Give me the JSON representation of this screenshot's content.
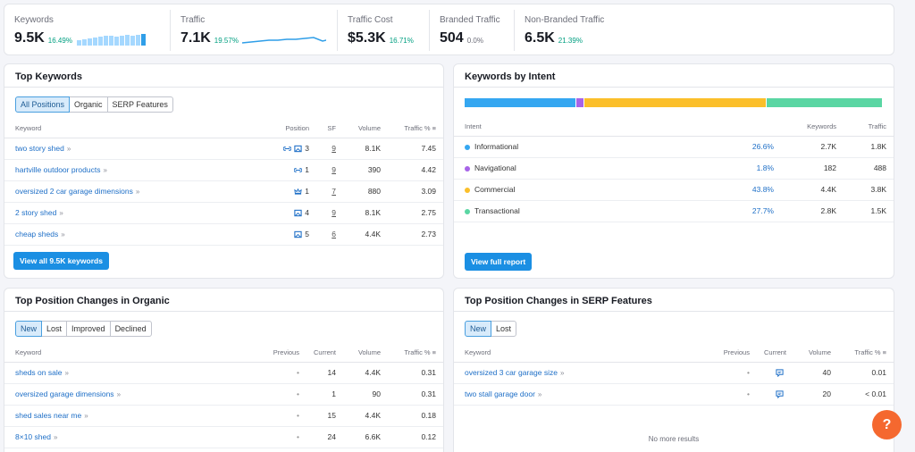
{
  "metrics": {
    "keywords": {
      "label": "Keywords",
      "value": "9.5K",
      "change": "16.49%"
    },
    "traffic": {
      "label": "Traffic",
      "value": "7.1K",
      "change": "19.57%"
    },
    "traffic_cost": {
      "label": "Traffic Cost",
      "value": "$5.3K",
      "change": "16.71%"
    },
    "branded": {
      "label": "Branded Traffic",
      "value": "504",
      "change": "0.0%"
    },
    "nonbranded": {
      "label": "Non-Branded Traffic",
      "value": "6.5K",
      "change": "21.39%"
    }
  },
  "top_keywords": {
    "title": "Top Keywords",
    "tabs": [
      "All Positions",
      "Organic",
      "SERP Features"
    ],
    "headers": {
      "keyword": "Keyword",
      "position": "Position",
      "sf": "SF",
      "volume": "Volume",
      "traffic": "Traffic %"
    },
    "rows": [
      {
        "keyword": "two story shed",
        "position": "3",
        "sf": "9",
        "volume": "8.1K",
        "traffic": "7.45",
        "icons": [
          "link-icon",
          "image-icon"
        ]
      },
      {
        "keyword": "hartville outdoor products",
        "position": "1",
        "sf": "9",
        "volume": "390",
        "traffic": "4.42",
        "icons": [
          "link-icon"
        ]
      },
      {
        "keyword": "oversized 2 car garage dimensions",
        "position": "1",
        "sf": "7",
        "volume": "880",
        "traffic": "3.09",
        "icons": [
          "crown-icon"
        ]
      },
      {
        "keyword": "2 story shed",
        "position": "4",
        "sf": "9",
        "volume": "8.1K",
        "traffic": "2.75",
        "icons": [
          "image-icon"
        ]
      },
      {
        "keyword": "cheap sheds",
        "position": "5",
        "sf": "6",
        "volume": "4.4K",
        "traffic": "2.73",
        "icons": [
          "image-icon"
        ]
      }
    ],
    "button": "View all 9.5K keywords"
  },
  "intent": {
    "title": "Keywords by Intent",
    "headers": {
      "intent": "Intent",
      "keywords": "Keywords",
      "traffic": "Traffic"
    },
    "rows": [
      {
        "name": "Informational",
        "pct": "26.6%",
        "keywords": "2.7K",
        "traffic": "1.8K",
        "color": "#35a7f1",
        "share": 26.6
      },
      {
        "name": "Navigational",
        "pct": "1.8%",
        "keywords": "182",
        "traffic": "488",
        "color": "#a764e8",
        "share": 1.8
      },
      {
        "name": "Commercial",
        "pct": "43.8%",
        "keywords": "4.4K",
        "traffic": "3.8K",
        "color": "#fbbf2a",
        "share": 43.8
      },
      {
        "name": "Transactional",
        "pct": "27.7%",
        "keywords": "2.8K",
        "traffic": "1.5K",
        "color": "#5ad6a3",
        "share": 27.7
      }
    ],
    "button": "View full report"
  },
  "organic_changes": {
    "title": "Top Position Changes in Organic",
    "tabs": [
      "New",
      "Lost",
      "Improved",
      "Declined"
    ],
    "headers": {
      "keyword": "Keyword",
      "previous": "Previous",
      "current": "Current",
      "volume": "Volume",
      "traffic": "Traffic %"
    },
    "rows": [
      {
        "keyword": "sheds on sale",
        "previous": "•",
        "current": "14",
        "volume": "4.4K",
        "traffic": "0.31"
      },
      {
        "keyword": "oversized garage dimensions",
        "previous": "•",
        "current": "1",
        "volume": "90",
        "traffic": "0.31"
      },
      {
        "keyword": "shed sales near me",
        "previous": "•",
        "current": "15",
        "volume": "4.4K",
        "traffic": "0.18"
      },
      {
        "keyword": "8×10 shed",
        "previous": "•",
        "current": "24",
        "volume": "6.6K",
        "traffic": "0.12"
      }
    ]
  },
  "serp_changes": {
    "title": "Top Position Changes in SERP Features",
    "tabs": [
      "New",
      "Lost"
    ],
    "headers": {
      "keyword": "Keyword",
      "previous": "Previous",
      "current": "Current",
      "volume": "Volume",
      "traffic": "Traffic %"
    },
    "rows": [
      {
        "keyword": "oversized 3 car garage size",
        "previous": "•",
        "volume": "40",
        "traffic": "0.01"
      },
      {
        "keyword": "two stall garage door",
        "previous": "•",
        "volume": "20",
        "traffic": "< 0.01"
      }
    ],
    "no_more": "No more results"
  },
  "help": {
    "label": "?"
  }
}
